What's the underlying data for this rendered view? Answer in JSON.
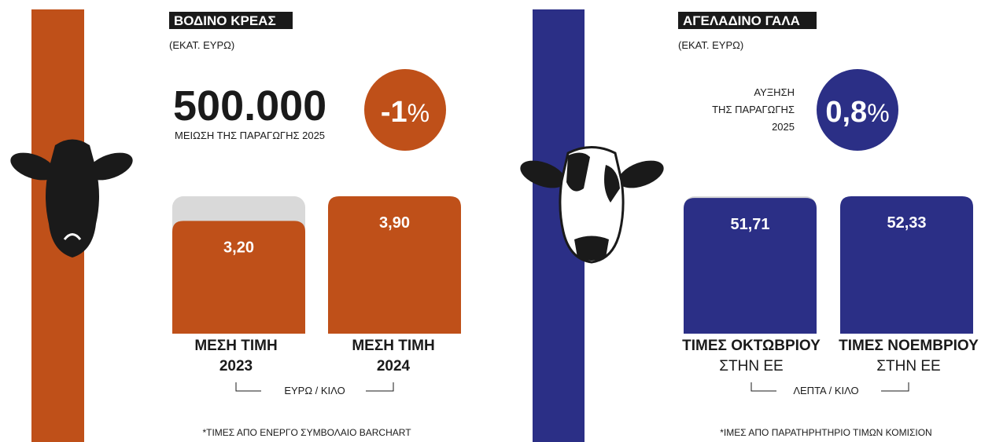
{
  "panels": [
    {
      "title": "ΒΟΔΙΝΟ ΚΡΕΑΣ",
      "subtitle": "(ΕΚΑΤ. ΕΥΡΩ)",
      "headline": "500.000",
      "headline_caption": "ΜΕΙΩΣΗ ΤΗΣ ΠΑΡΑΓΩΓΗΣ 2025",
      "change": "-1",
      "change_unit": "%",
      "color": "#bf5019",
      "bars": [
        {
          "value": 3.2,
          "value_label": "3,20",
          "label": [
            "ΜΕΣΗ ΤΙΜΗ",
            "2023"
          ]
        },
        {
          "value": 3.9,
          "value_label": "3,90",
          "label": [
            "ΜΕΣΗ ΤΙΜΗ",
            "2024"
          ]
        }
      ],
      "unit": "ΕΥΡΩ / ΚΙΛΟ",
      "footnote": "*ΤΙΜΕΣ ΑΠΟ ΕΝΕΡΓΟ ΣΥΜΒΟΛΑΙΟ BARCHART"
    },
    {
      "title": "ΑΓΕΛΑΔΙΝΟ ΓΑΛΑ",
      "subtitle": "(ΕΚΑΤ. ΕΥΡΩ)",
      "change_caption": [
        "ΑΥΞΗΣΗ",
        "ΤΗΣ ΠΑΡΑΓΩΓΗΣ",
        "2025"
      ],
      "change": "0,8",
      "change_unit": "%",
      "color": "#2b2f86",
      "bars": [
        {
          "value": 51.71,
          "value_label": "51,71",
          "label": [
            "ΤΙΜΕΣ ΟΚΤΩΒΡΙΟΥ",
            "ΣΤΗΝ ΕΕ"
          ]
        },
        {
          "value": 52.33,
          "value_label": "52,33",
          "label": [
            "ΤΙΜΕΣ ΝΟΕΜΒΡΙΟΥ",
            "ΣΤΗΝ ΕΕ"
          ]
        }
      ],
      "unit": "ΛΕΠΤΑ / ΚΙΛΟ",
      "footnote": "*ΙΜΕΣ ΑΠΟ ΠΑΡΑΤΗΡΗΤΗΡΙΟ ΤΙΜΩΝ ΚΟΜΙΣΙΟΝ"
    }
  ]
}
